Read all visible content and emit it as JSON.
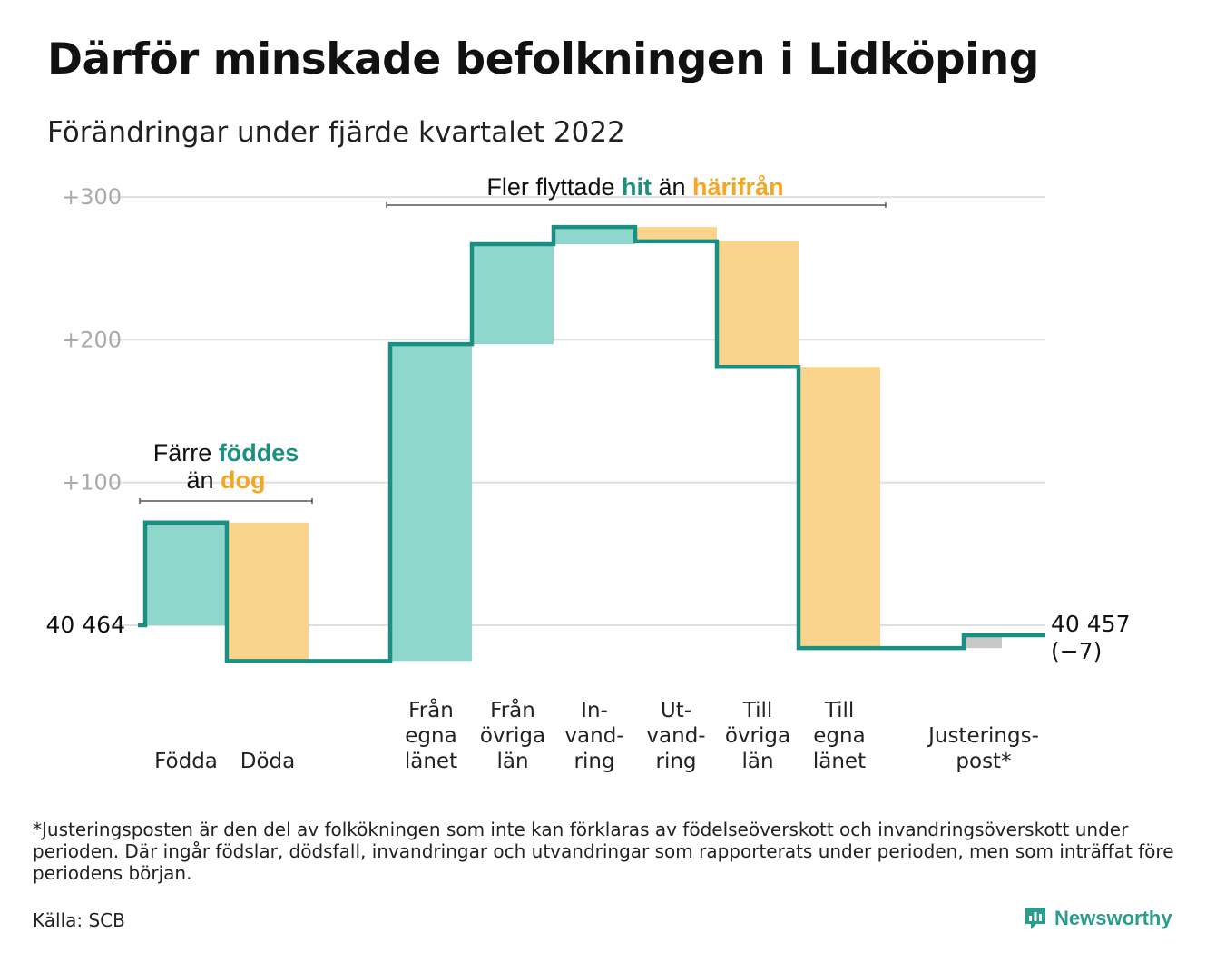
{
  "title": "Därför minskade befolkningen i Lidköping",
  "subtitle": "Förändringar under fjärde kvartalet 2022",
  "footnote": "*Justeringsposten är den del av folkökningen som inte kan förklaras av födelseöverskott och invandringsöverskott under perioden. Där ingår födslar, dödsfall, invandringar och utvandringar som rapporterats under perioden, men som inträffat före periodens början.",
  "source": "Källa: SCB",
  "brand": "Newsworthy",
  "colors": {
    "increase": "#8fd6cc",
    "decrease": "#fad48c",
    "adjustment": "#c8c8c8",
    "line": "#1a9082",
    "teal_text": "#1a9082",
    "orange_text": "#f5a623",
    "grid": "#e0e0e0",
    "tick_text": "#aaaaaa"
  },
  "chart_data": {
    "type": "waterfall",
    "title": "Därför minskade befolkningen i Lidköping",
    "subtitle": "Förändringar under fjärde kvartalet 2022",
    "ylim": [
      -30,
      300
    ],
    "yticks": [
      {
        "value": 100,
        "label": "+100"
      },
      {
        "value": 200,
        "label": "+200"
      },
      {
        "value": 300,
        "label": "+300"
      }
    ],
    "grid": true,
    "start": {
      "label": "40 464",
      "value": 40464
    },
    "end": {
      "label": "40 457",
      "change_label": "(−7)",
      "value": 40457,
      "change": -7
    },
    "steps": [
      {
        "label": [
          "Födda"
        ],
        "change": 72,
        "kind": "increase"
      },
      {
        "label": [
          "Döda"
        ],
        "change": -97,
        "kind": "decrease"
      },
      {
        "label": [
          "Från",
          "egna",
          "länet"
        ],
        "change": 222,
        "kind": "increase"
      },
      {
        "label": [
          "Från",
          "övriga",
          "län"
        ],
        "change": 70,
        "kind": "increase"
      },
      {
        "label": [
          "In-",
          "vand-",
          "ring"
        ],
        "change": 12,
        "kind": "increase"
      },
      {
        "label": [
          "Ut-",
          "vand-",
          "ring"
        ],
        "change": -10,
        "kind": "decrease"
      },
      {
        "label": [
          "Till",
          "övriga",
          "län"
        ],
        "change": -88,
        "kind": "decrease"
      },
      {
        "label": [
          "Till",
          "egna",
          "länet"
        ],
        "change": -197,
        "kind": "decrease"
      },
      {
        "label": [
          "Justerings-",
          "post*"
        ],
        "change": 9,
        "kind": "adjustment"
      }
    ],
    "annotations": [
      {
        "parts": [
          [
            "Färre ",
            "plain"
          ],
          [
            "föddes",
            "teal"
          ]
        ],
        "parts2": [
          [
            "än ",
            "plain"
          ],
          [
            "dog",
            "orange"
          ]
        ],
        "from_step": 0,
        "to_step": 1
      },
      {
        "parts": [
          [
            "Fler flyttade ",
            "plain"
          ],
          [
            "hit",
            "teal"
          ],
          [
            " än ",
            "plain"
          ],
          [
            "härifrån",
            "orange"
          ]
        ],
        "from_step": 2,
        "to_step": 7
      }
    ]
  }
}
